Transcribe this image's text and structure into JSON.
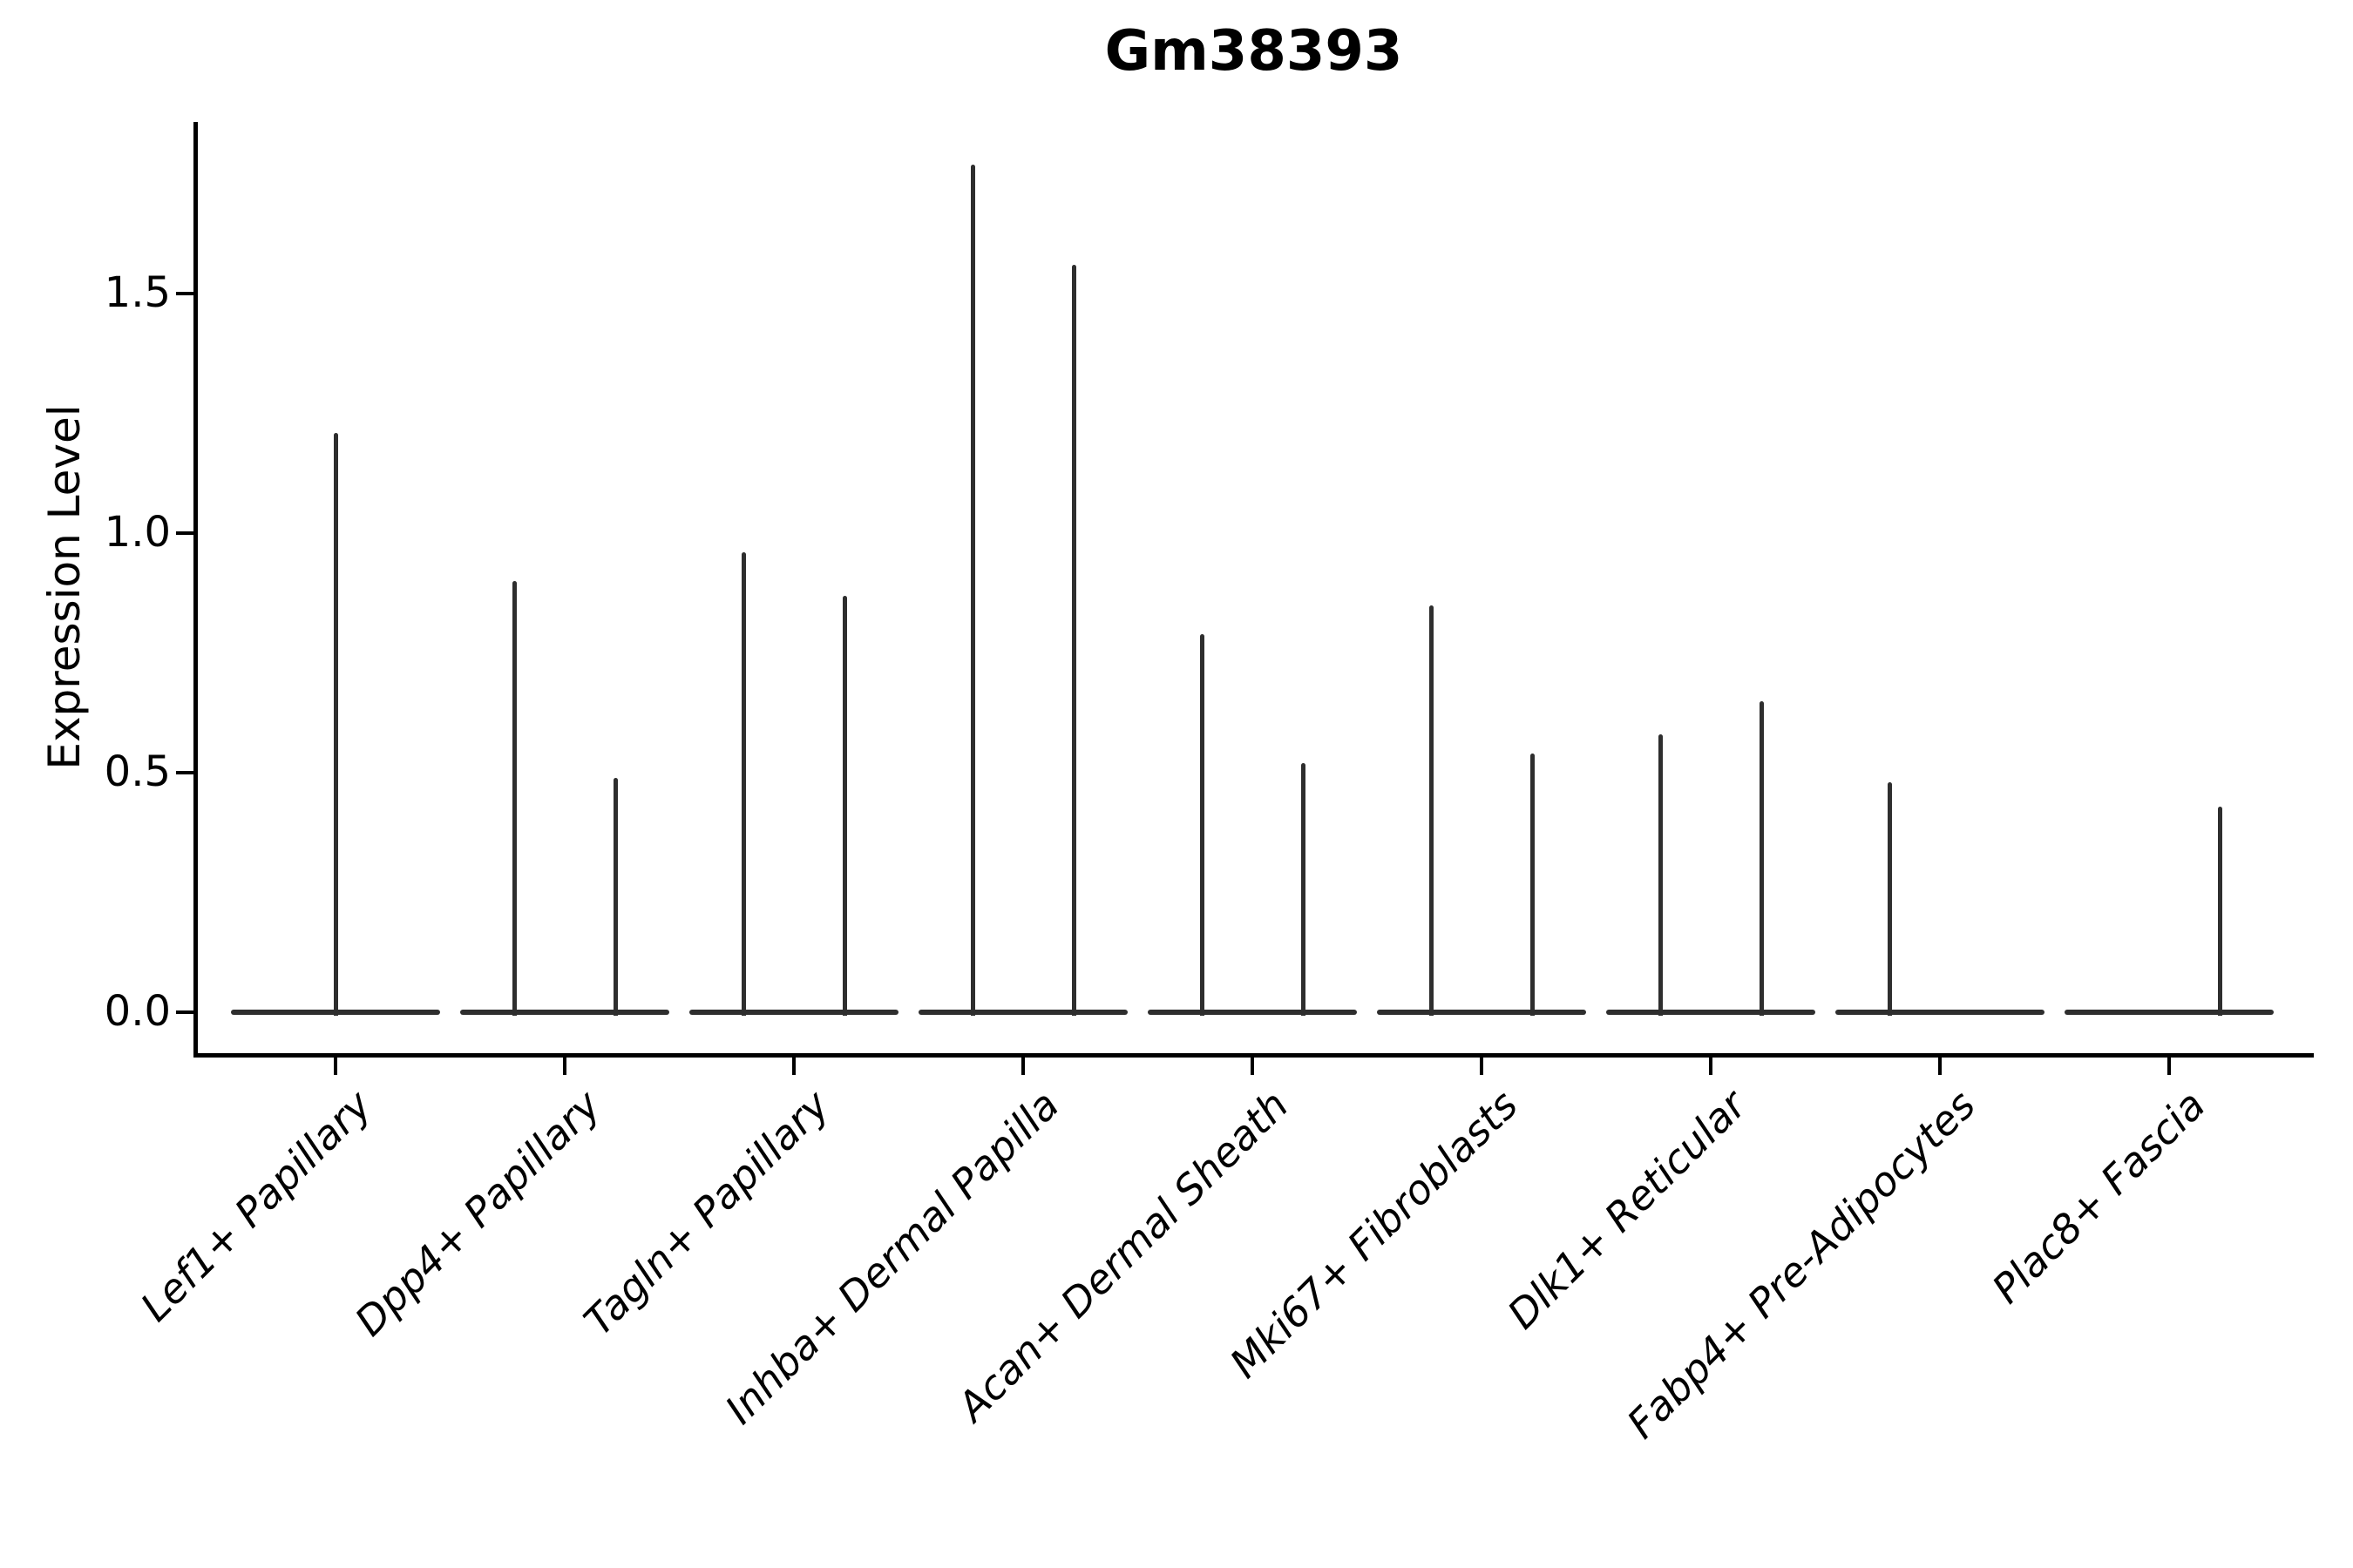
{
  "figure": {
    "title": "Gm38393",
    "ylabel": "Expression Level"
  },
  "chart_data": {
    "type": "violin",
    "title": "Gm38393",
    "xlabel": "",
    "ylabel": "Expression Level",
    "yticks": [
      "0.0",
      "0.5",
      "1.0",
      "1.5"
    ],
    "ytick_values": [
      0.0,
      0.5,
      1.0,
      1.5
    ],
    "ylim": [
      0,
      1.86
    ],
    "grid": false,
    "legend": "none",
    "x_label_rotation_deg": 45,
    "categories": [
      "Lef1+ Papillary",
      "Dpp4+ Papillary",
      "Tagln+ Papillary",
      "Inhba+ Dermal Papilla",
      "Acan+ Dermal Sheath",
      "Mki67+ Fibroblasts",
      "Dlk1+ Reticular",
      "Fabp4+ Pre-Adipocytes",
      "Plac8+ Fascia"
    ],
    "violins": [
      {
        "category": "Lef1+ Papillary",
        "baseline_at_zero": true,
        "spikes": [
          {
            "pos": "center",
            "max": 1.21
          }
        ]
      },
      {
        "category": "Dpp4+ Papillary",
        "baseline_at_zero": true,
        "spikes": [
          {
            "pos": "left",
            "max": 0.9
          },
          {
            "pos": "right",
            "max": 0.49
          }
        ]
      },
      {
        "category": "Tagln+ Papillary",
        "baseline_at_zero": true,
        "spikes": [
          {
            "pos": "left",
            "max": 0.96
          },
          {
            "pos": "right",
            "max": 0.87
          }
        ]
      },
      {
        "category": "Inhba+ Dermal Papilla",
        "baseline_at_zero": true,
        "spikes": [
          {
            "pos": "left",
            "max": 1.77
          },
          {
            "pos": "right",
            "max": 1.56
          }
        ]
      },
      {
        "category": "Acan+ Dermal Sheath",
        "baseline_at_zero": true,
        "spikes": [
          {
            "pos": "left",
            "max": 0.79
          },
          {
            "pos": "right",
            "max": 0.52
          }
        ]
      },
      {
        "category": "Mki67+ Fibroblasts",
        "baseline_at_zero": true,
        "spikes": [
          {
            "pos": "left",
            "max": 0.85
          },
          {
            "pos": "right",
            "max": 0.54
          }
        ]
      },
      {
        "category": "Dlk1+ Reticular",
        "baseline_at_zero": true,
        "spikes": [
          {
            "pos": "left",
            "max": 0.58
          },
          {
            "pos": "right",
            "max": 0.65
          }
        ]
      },
      {
        "category": "Fabp4+ Pre-Adipocytes",
        "baseline_at_zero": true,
        "spikes": [
          {
            "pos": "left",
            "max": 0.48
          }
        ]
      },
      {
        "category": "Plac8+ Fascia",
        "baseline_at_zero": true,
        "spikes": [
          {
            "pos": "right",
            "max": 0.43
          }
        ]
      }
    ],
    "colors": {
      "line": "#2e2e2e",
      "axis": "#000000",
      "background": "#ffffff"
    }
  }
}
